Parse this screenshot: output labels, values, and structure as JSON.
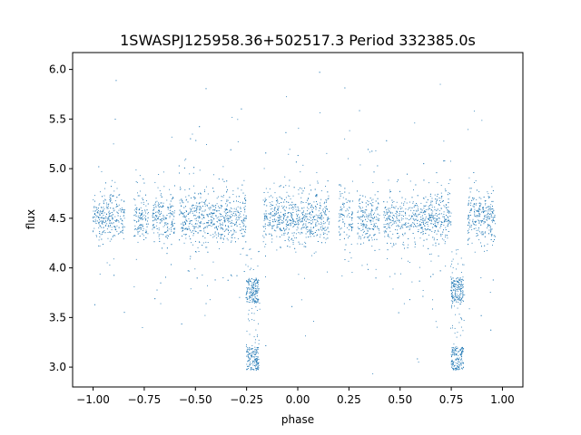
{
  "chart_data": {
    "type": "scatter",
    "title": "1SWASPJ125958.36+502517.3 Period 332385.0s",
    "xlabel": "phase",
    "ylabel": "flux",
    "xlim": [
      -1.1,
      1.1
    ],
    "ylim": [
      2.8,
      6.17
    ],
    "xticks": [
      -1.0,
      -0.75,
      -0.5,
      -0.25,
      0.0,
      0.25,
      0.5,
      0.75,
      1.0
    ],
    "xtick_labels": [
      "−1.00",
      "−0.75",
      "−0.50",
      "−0.25",
      "0.00",
      "0.25",
      "0.50",
      "0.75",
      "1.00"
    ],
    "yticks": [
      3.0,
      3.5,
      4.0,
      4.5,
      5.0,
      5.5,
      6.0
    ],
    "ytick_labels": [
      "3.0",
      "3.5",
      "4.0",
      "4.5",
      "5.0",
      "5.5",
      "6.0"
    ],
    "grid": false,
    "legend": "none",
    "marker_color": "#1f77b4",
    "baseline_flux": 4.5,
    "eclipse_phases": [
      -0.22,
      0.78
    ],
    "eclipse_bands": [
      {
        "flux_min": 3.65,
        "flux_max": 3.9
      },
      {
        "flux_min": 2.97,
        "flux_max": 3.2
      }
    ],
    "data_gaps": [
      [
        -0.845,
        -0.8
      ],
      [
        -0.73,
        -0.71
      ],
      [
        -0.6,
        -0.58
      ],
      [
        -0.25,
        -0.17
      ],
      [
        0.155,
        0.2
      ],
      [
        0.27,
        0.29
      ],
      [
        0.4,
        0.42
      ],
      [
        0.75,
        0.83
      ],
      [
        0.965,
        1.0
      ]
    ]
  }
}
